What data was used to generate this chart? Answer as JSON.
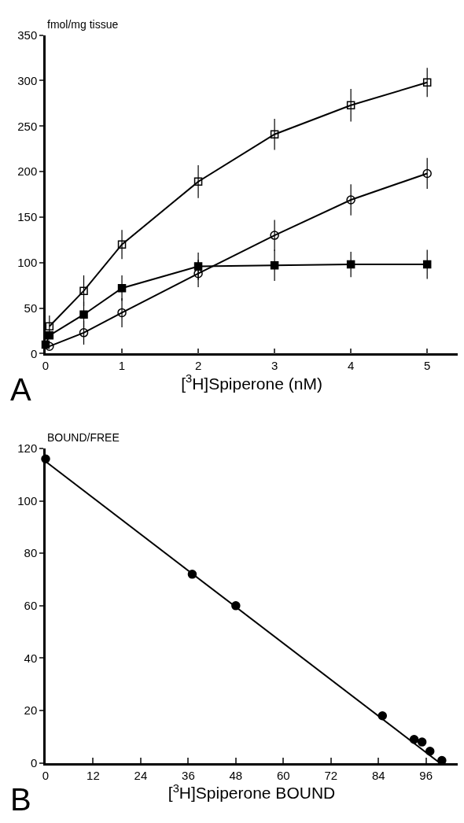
{
  "chart_data": [
    {
      "type": "line",
      "xlabel": "[$^{3}$H]Spiperone (nM)",
      "ylabel": "fmol/mg tissue",
      "xlim": [
        0,
        5.4
      ],
      "ylim": [
        0,
        350
      ],
      "xticks": [
        0,
        1,
        2,
        3,
        4,
        5
      ],
      "yticks": [
        0,
        50,
        100,
        150,
        200,
        250,
        300,
        350
      ],
      "line_style": "solid",
      "annotations": [
        "A"
      ],
      "series": [
        {
          "color": "#000000",
          "marker": "square-open",
          "x": [
            0.05,
            0.5,
            1,
            2,
            3,
            4,
            5
          ],
          "values": [
            30,
            69,
            120,
            189,
            241,
            273,
            298
          ],
          "errors": [
            12,
            17,
            16,
            18,
            17,
            18,
            16
          ]
        },
        {
          "color": "#000000",
          "marker": "circle-open",
          "x": [
            0.05,
            0.5,
            1,
            2,
            3,
            4,
            5
          ],
          "values": [
            8,
            23,
            45,
            88,
            130,
            169,
            198
          ],
          "errors": [
            null,
            13,
            16,
            15,
            17,
            17,
            17
          ]
        },
        {
          "color": "#000000",
          "marker": "square",
          "x": [
            0,
            0.05,
            0.5,
            1,
            2,
            3,
            4,
            5
          ],
          "values": [
            10,
            20,
            43,
            72,
            96,
            97,
            98,
            98
          ],
          "errors": [
            null,
            null,
            14,
            14,
            15,
            17,
            14,
            16
          ]
        }
      ]
    },
    {
      "type": "scatter",
      "xlabel": "[$^{3}$H]Spiperone BOUND",
      "ylabel": "BOUND/FREE",
      "xlim": [
        0,
        104
      ],
      "ylim": [
        0,
        120
      ],
      "xticks": [
        0,
        12,
        24,
        36,
        48,
        60,
        72,
        84,
        96
      ],
      "yticks": [
        0,
        20,
        40,
        60,
        80,
        100,
        120
      ],
      "annotations": [
        "B"
      ],
      "series": [
        {
          "color": "#000000",
          "marker": "circle",
          "x": [
            0,
            37,
            48,
            85,
            93,
            95,
            97,
            100
          ],
          "values": [
            116,
            72,
            60,
            18,
            9,
            8,
            4.5,
            1
          ]
        },
        {
          "type": "line",
          "color": "#000000",
          "marker": "none",
          "line_style": "solid",
          "x": [
            0,
            99.5
          ],
          "values": [
            115,
            0
          ]
        }
      ]
    }
  ]
}
